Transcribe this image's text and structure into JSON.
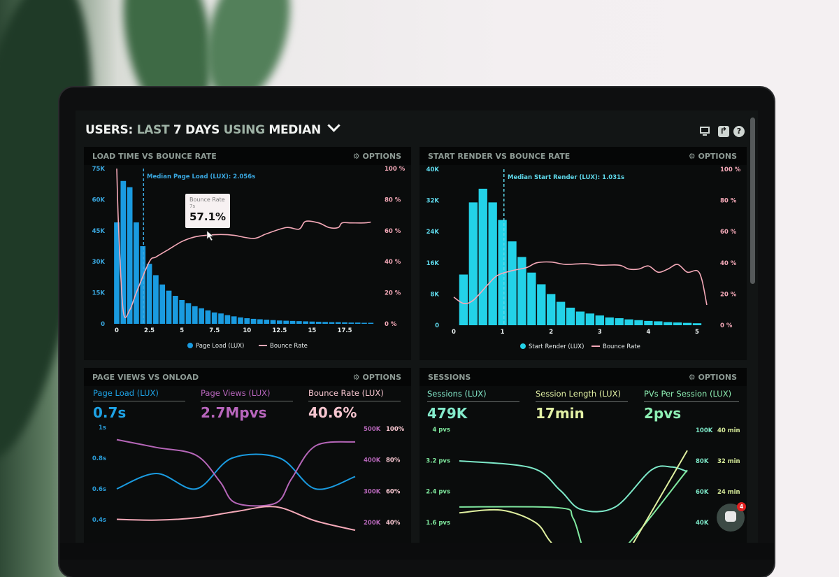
{
  "header": {
    "title_parts": [
      {
        "text": "USERS:",
        "dim": false
      },
      {
        "text": "LAST",
        "dim": true
      },
      {
        "text": "7 DAYS",
        "dim": false
      },
      {
        "text": "USING",
        "dim": true
      },
      {
        "text": "MEDIAN",
        "dim": false
      }
    ],
    "dropdown_icon": "chevron-down-icon",
    "icons": [
      "monitor-icon",
      "share-icon",
      "help-icon"
    ]
  },
  "panels": [
    {
      "title": "LOAD TIME VS BOUNCE RATE",
      "options": "OPTIONS"
    },
    {
      "title": "START RENDER VS BOUNCE RATE",
      "options": "OPTIONS"
    },
    {
      "title": "PAGE VIEWS VS ONLOAD",
      "options": "OPTIONS"
    },
    {
      "title": "SESSIONS",
      "options": "OPTIONS"
    }
  ],
  "stats_onload": [
    {
      "label": "Page Load (LUX)",
      "value": "0.7s",
      "color": "#1ea3e6"
    },
    {
      "label": "Page Views (LUX)",
      "value": "2.7Mpvs",
      "color": "#b866bd"
    },
    {
      "label": "Bounce Rate (LUX)",
      "value": "40.6%",
      "color": "#f7c6d0"
    }
  ],
  "stats_sessions": [
    {
      "label": "Sessions (LUX)",
      "value": "479K",
      "color": "#84eacb"
    },
    {
      "label": "Session Length (LUX)",
      "value": "17min",
      "color": "#e3f2a6"
    },
    {
      "label": "PVs Per Session (LUX)",
      "value": "2pvs",
      "color": "#8ef0b4"
    }
  ],
  "tooltip": {
    "label": "Bounce Rate",
    "sub": "7s",
    "value": "57.1%"
  },
  "chat": {
    "badge": "4"
  },
  "colors": {
    "page_load": "#1a9be0",
    "start_render": "#23d2e8",
    "bounce": "#f4a9b8",
    "page_views": "#b566b8",
    "sessions": "#7de8c8",
    "session_length": "#e0f0a0",
    "pvs": "#80e8a0"
  },
  "chart_data": [
    {
      "type": "bar+line",
      "x_ticks": [
        "0",
        "2.5",
        "5",
        "7.5",
        "10",
        "12.5",
        "15",
        "17.5"
      ],
      "y_left_ticks": [
        "75K",
        "60K",
        "45K",
        "30K",
        "15K",
        "0"
      ],
      "y_right_ticks": [
        "100 %",
        "80 %",
        "60 %",
        "40 %",
        "20 %",
        "0 %"
      ],
      "ylim_left": [
        0,
        75000
      ],
      "ylim_right": [
        0,
        100
      ],
      "median_label": "Median Page Load (LUX): 2.056s",
      "median_x": 2.056,
      "bars": {
        "name": "Page Load (LUX)",
        "x": [
          0,
          0.5,
          1,
          1.5,
          2,
          2.5,
          3,
          3.5,
          4,
          4.5,
          5,
          5.5,
          6,
          6.5,
          7,
          7.5,
          8,
          8.5,
          9,
          9.5,
          10,
          10.5,
          11,
          11.5,
          12,
          12.5,
          13,
          13.5,
          14,
          14.5,
          15,
          15.5,
          16,
          16.5,
          17,
          17.5,
          18,
          18.5,
          19,
          19.5
        ],
        "values": [
          49000,
          69000,
          66000,
          49000,
          37500,
          29000,
          23500,
          19000,
          16000,
          13500,
          11500,
          10000,
          8500,
          7500,
          6500,
          5500,
          5000,
          4200,
          3600,
          3100,
          2700,
          2400,
          2200,
          2000,
          1800,
          1600,
          1500,
          1400,
          1300,
          1200,
          1100,
          1000,
          900,
          800,
          800,
          700,
          600,
          600,
          500,
          500
        ]
      },
      "line": {
        "name": "Bounce Rate",
        "points": [
          [
            0,
            100
          ],
          [
            0.15,
            60
          ],
          [
            0.5,
            8
          ],
          [
            1,
            9
          ],
          [
            1.5,
            20
          ],
          [
            2.5,
            40
          ],
          [
            3,
            43
          ],
          [
            4,
            48
          ],
          [
            5,
            53
          ],
          [
            6,
            56
          ],
          [
            7,
            57.1
          ],
          [
            8,
            57.5
          ],
          [
            9,
            57
          ],
          [
            10.5,
            55
          ],
          [
            11.5,
            58
          ],
          [
            13,
            62
          ],
          [
            14,
            61
          ],
          [
            14.5,
            66
          ],
          [
            15.5,
            65
          ],
          [
            16.3,
            62
          ],
          [
            17,
            62
          ],
          [
            17.3,
            65
          ],
          [
            18,
            65
          ],
          [
            19,
            65
          ],
          [
            19.5,
            65.5
          ]
        ]
      },
      "legend": "bottom"
    },
    {
      "type": "bar+line",
      "x_ticks": [
        "0",
        "1",
        "2",
        "3",
        "4",
        "5"
      ],
      "y_left_ticks": [
        "40K",
        "32K",
        "24K",
        "16K",
        "8K",
        "0"
      ],
      "y_right_ticks": [
        "100 %",
        "80 %",
        "60 %",
        "40 %",
        "20 %",
        "0 %"
      ],
      "ylim_left": [
        0,
        40000
      ],
      "ylim_right": [
        0,
        100
      ],
      "median_label": "Median Start Render (LUX): 1.031s",
      "median_x": 1.031,
      "bars": {
        "name": "Start Render (LUX)",
        "x": [
          0.2,
          0.4,
          0.6,
          0.8,
          1,
          1.2,
          1.4,
          1.6,
          1.8,
          2,
          2.2,
          2.4,
          2.6,
          2.8,
          3,
          3.2,
          3.4,
          3.6,
          3.8,
          4,
          4.2,
          4.4,
          4.6,
          4.8,
          5
        ],
        "values": [
          13000,
          31500,
          35000,
          31500,
          27000,
          21500,
          17500,
          13500,
          10500,
          8000,
          6000,
          4500,
          3500,
          3000,
          2500,
          2000,
          1800,
          1500,
          1300,
          1100,
          1000,
          800,
          700,
          600,
          500
        ]
      },
      "line": {
        "name": "Bounce Rate",
        "points": [
          [
            0,
            18
          ],
          [
            0.2,
            14
          ],
          [
            0.4,
            16
          ],
          [
            0.7,
            26
          ],
          [
            0.9,
            32
          ],
          [
            1.2,
            35
          ],
          [
            1.5,
            37
          ],
          [
            1.7,
            40
          ],
          [
            2,
            40.5
          ],
          [
            2.3,
            39
          ],
          [
            2.7,
            39.5
          ],
          [
            3,
            38.5
          ],
          [
            3.4,
            38.5
          ],
          [
            3.6,
            36
          ],
          [
            3.8,
            36
          ],
          [
            4,
            38
          ],
          [
            4.2,
            34
          ],
          [
            4.4,
            36
          ],
          [
            4.6,
            39
          ],
          [
            4.8,
            34
          ],
          [
            5,
            35
          ],
          [
            5.1,
            29
          ],
          [
            5.2,
            13
          ]
        ]
      },
      "legend": "bottom"
    },
    {
      "type": "line",
      "y_left_ticks": [
        "1s",
        "0.8s",
        "0.6s",
        "0.4s"
      ],
      "y_right_ticks_a": [
        "500K",
        "400K",
        "300K",
        "200K"
      ],
      "y_right_ticks_b": [
        "100%",
        "80%",
        "60%",
        "40%"
      ],
      "series": [
        {
          "axis": "left",
          "unit": "s",
          "ylim": [
            0.4,
            1.0
          ],
          "points": [
            [
              0,
              0.6
            ],
            [
              1,
              0.7
            ],
            [
              2,
              0.6
            ],
            [
              2.9,
              0.8
            ],
            [
              4.1,
              0.8
            ],
            [
              5,
              0.6
            ],
            [
              6,
              0.68
            ]
          ]
        },
        {
          "axis": "right_a",
          "unit": "pvs",
          "ylim": [
            200000,
            500000
          ],
          "points": [
            [
              0,
              465000
            ],
            [
              1,
              440000
            ],
            [
              2,
              415000
            ],
            [
              2.6,
              330000
            ],
            [
              3,
              262000
            ],
            [
              4,
              262000
            ],
            [
              4.4,
              340000
            ],
            [
              5,
              445000
            ],
            [
              6,
              458000
            ]
          ]
        },
        {
          "axis": "right_b",
          "unit": "%",
          "ylim": [
            40,
            100
          ],
          "points": [
            [
              0,
              42
            ],
            [
              1,
              41.5
            ],
            [
              2,
              43
            ],
            [
              3,
              47
            ],
            [
              4,
              50
            ],
            [
              5,
              41
            ],
            [
              6,
              35
            ]
          ]
        }
      ]
    },
    {
      "type": "line",
      "y_left_ticks": [
        "4 pvs",
        "3.2 pvs",
        "2.4 pvs",
        "1.6 pvs"
      ],
      "y_right_ticks_a": [
        "100K",
        "80K",
        "60K",
        "40K"
      ],
      "y_right_ticks_b": [
        "40 min",
        "32 min",
        "24 min"
      ],
      "series": [
        {
          "axis": "right_a",
          "unit": "sessions",
          "ylim": [
            40000,
            100000
          ],
          "points": [
            [
              0,
              80000
            ],
            [
              1.9,
              75500
            ],
            [
              2.65,
              61000
            ],
            [
              3.2,
              48500
            ],
            [
              4.1,
              50000
            ],
            [
              5.05,
              74000
            ],
            [
              5.6,
              76000
            ],
            [
              6,
              73000
            ]
          ]
        },
        {
          "axis": "left",
          "unit": "pvs",
          "ylim": [
            1.6,
            4
          ],
          "points": [
            [
              0,
              2.0
            ],
            [
              2.6,
              1.98
            ],
            [
              3.0,
              1.7
            ],
            [
              3.4,
              0.7
            ],
            [
              4.2,
              0.8
            ],
            [
              6,
              2.95
            ]
          ]
        },
        {
          "axis": "right_b",
          "unit": "min",
          "ylim": [
            16,
            40
          ],
          "points": [
            [
              0,
              18.5
            ],
            [
              1.1,
              19.2
            ],
            [
              2,
              16
            ],
            [
              2.4,
              11
            ],
            [
              3,
              5
            ],
            [
              4.4,
              8
            ],
            [
              4.6,
              11
            ],
            [
              6,
              34.7
            ]
          ]
        }
      ]
    }
  ]
}
